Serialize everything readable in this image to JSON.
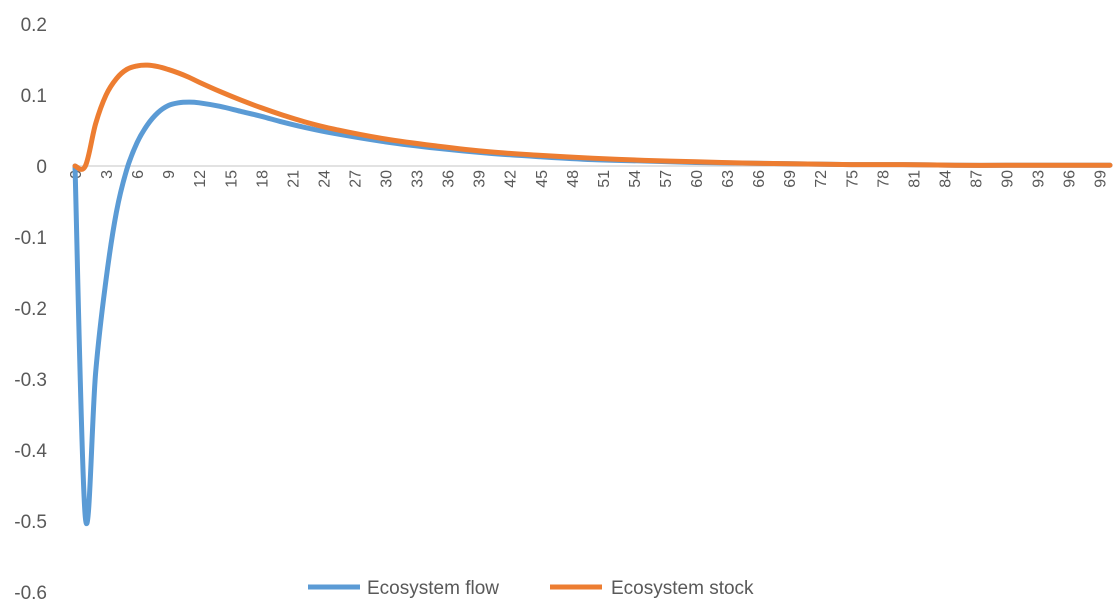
{
  "chart_data": {
    "type": "line",
    "title": "",
    "xlabel": "",
    "ylabel": "",
    "ylim": [
      -0.6,
      0.2
    ],
    "yticks": [
      -0.6,
      -0.5,
      -0.4,
      -0.3,
      -0.2,
      -0.1,
      0,
      0.1,
      0.2
    ],
    "xlim": [
      0,
      100
    ],
    "xtick_labels": [
      "0",
      "3",
      "6",
      "9",
      "12",
      "15",
      "18",
      "21",
      "24",
      "27",
      "30",
      "33",
      "36",
      "39",
      "42",
      "45",
      "48",
      "51",
      "54",
      "57",
      "60",
      "63",
      "66",
      "69",
      "72",
      "75",
      "78",
      "81",
      "84",
      "87",
      "90",
      "93",
      "96",
      "99"
    ],
    "grid": false,
    "legend_position": "bottom",
    "x": [
      0,
      1,
      2,
      3,
      4,
      5,
      6,
      7,
      8,
      9,
      10,
      11,
      12,
      14,
      16,
      18,
      20,
      22,
      25,
      30,
      35,
      40,
      45,
      50,
      55,
      60,
      65,
      70,
      75,
      80,
      85,
      90,
      95,
      100
    ],
    "series": [
      {
        "name": "Ecosystem flow",
        "color": "#5B9BD5",
        "values": [
          0,
          -0.495,
          -0.29,
          -0.16,
          -0.065,
          -0.005,
          0.033,
          0.058,
          0.075,
          0.085,
          0.089,
          0.09,
          0.089,
          0.084,
          0.077,
          0.07,
          0.062,
          0.055,
          0.046,
          0.034,
          0.025,
          0.018,
          0.013,
          0.009,
          0.007,
          0.005,
          0.004,
          0.003,
          0.002,
          0.002,
          0.001,
          0.001,
          0.001,
          0.001
        ]
      },
      {
        "name": "Ecosystem stock",
        "color": "#ED7D31",
        "values": [
          0,
          0,
          0.06,
          0.1,
          0.123,
          0.136,
          0.141,
          0.142,
          0.14,
          0.136,
          0.131,
          0.125,
          0.118,
          0.105,
          0.093,
          0.082,
          0.072,
          0.063,
          0.052,
          0.038,
          0.028,
          0.02,
          0.015,
          0.011,
          0.008,
          0.006,
          0.004,
          0.003,
          0.002,
          0.002,
          0.001,
          0.001,
          0.001,
          0.001
        ]
      }
    ]
  }
}
